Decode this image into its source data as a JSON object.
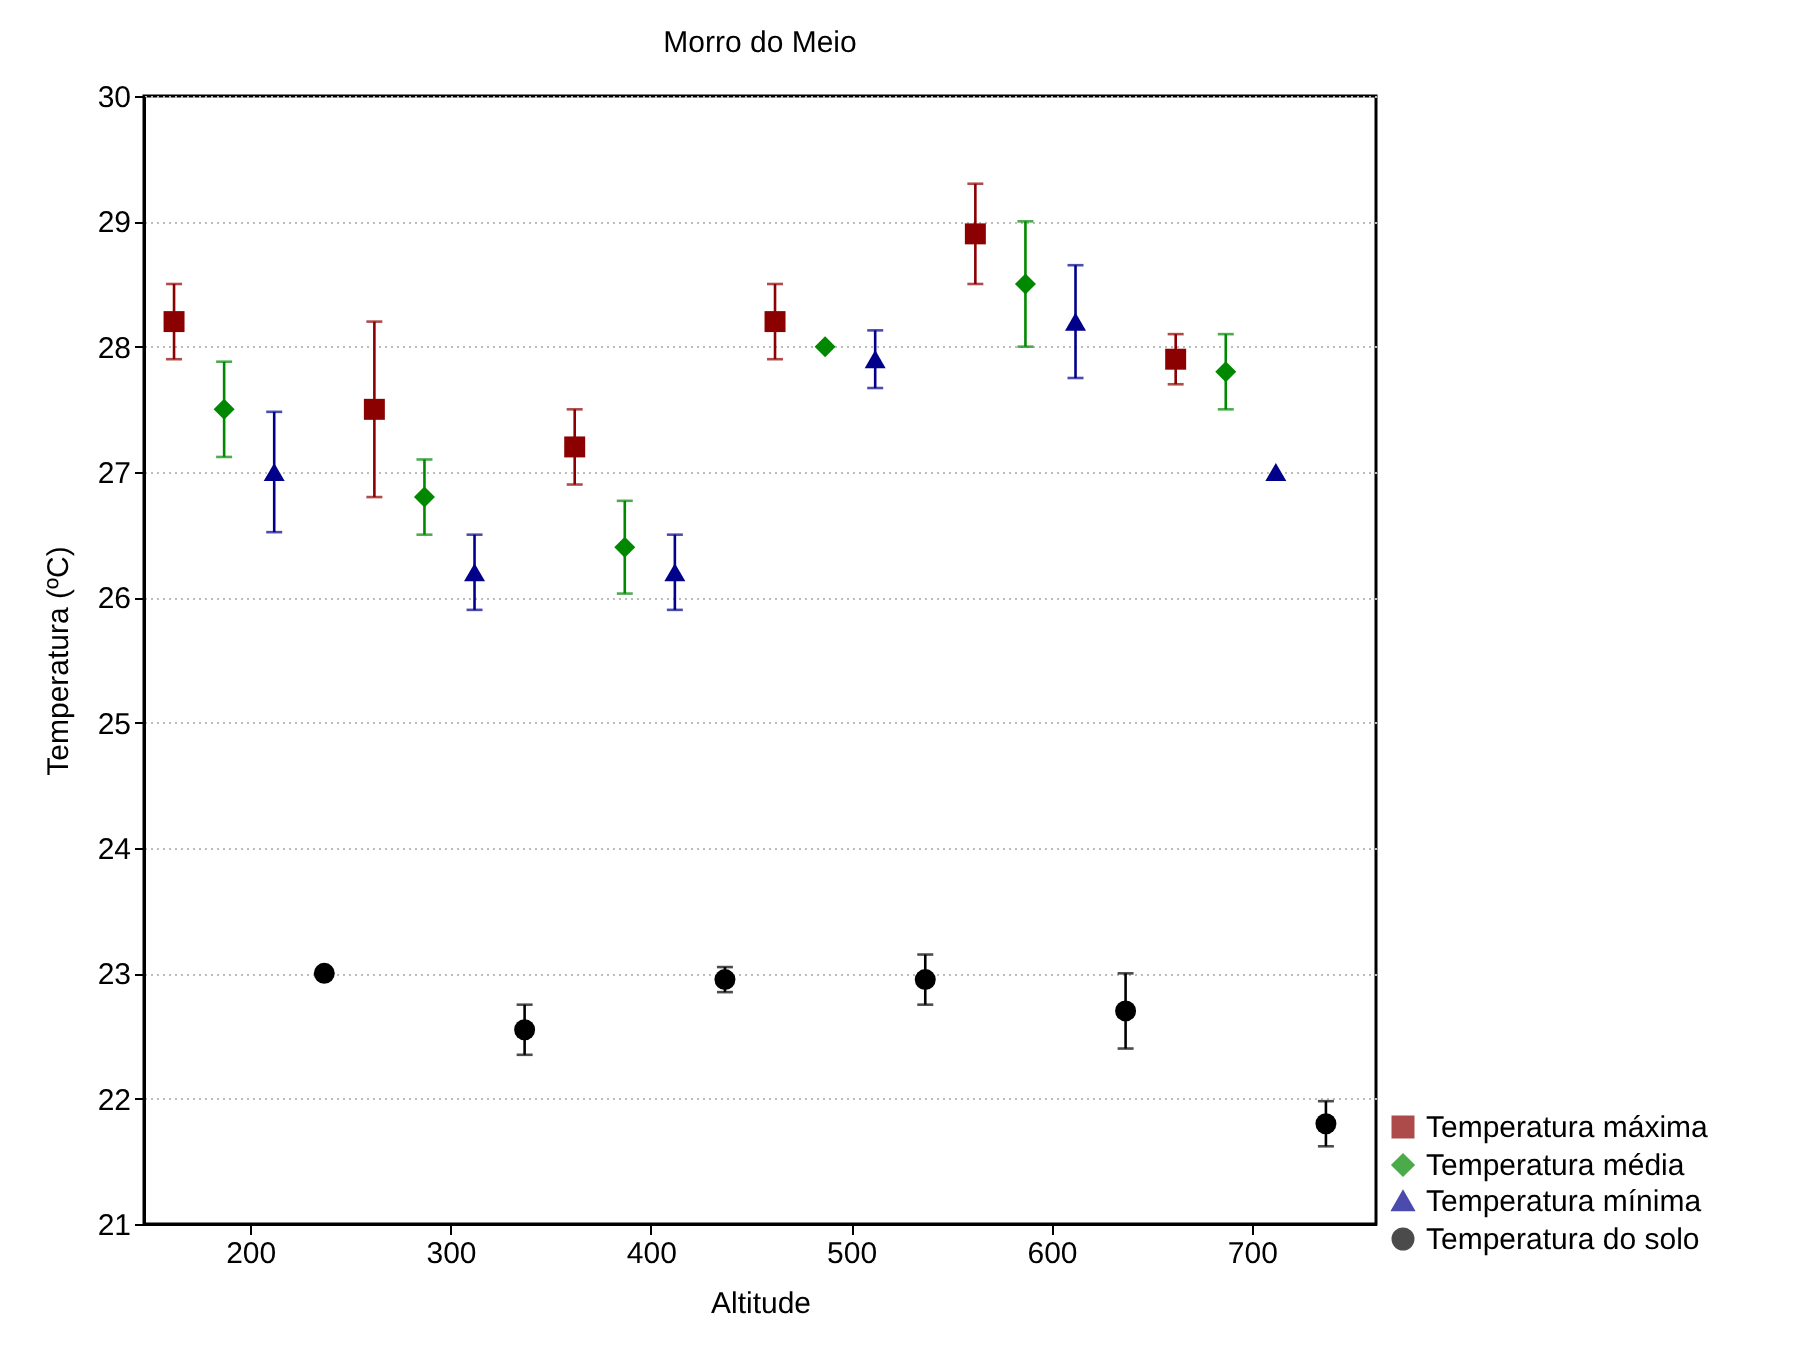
{
  "chart_data": {
    "type": "scatter",
    "title": "Morro do Meio",
    "xlabel": "Altitude",
    "ylabel": "Temperatura (ºC)",
    "xlim": [
      147,
      762
    ],
    "xticks": [
      200,
      300,
      400,
      500,
      600,
      700
    ],
    "ylim": [
      21,
      30
    ],
    "yticks": [
      21,
      22,
      23,
      24,
      25,
      26,
      27,
      28,
      29,
      30
    ],
    "grid": "y",
    "legend": "bottom right",
    "series": [
      {
        "name": "Temperatura máxima",
        "color": "#8b0000",
        "marker": "square",
        "x": [
          162,
          262,
          362,
          462,
          562,
          662
        ],
        "values": [
          28.2,
          27.5,
          27.2,
          28.2,
          28.9,
          27.9
        ],
        "errors": [
          [
            27.9,
            28.5
          ],
          [
            26.8,
            28.2
          ],
          [
            26.9,
            27.5
          ],
          [
            27.9,
            28.5
          ],
          [
            28.5,
            29.3
          ],
          [
            27.7,
            28.1
          ]
        ]
      },
      {
        "name": "Temperatura média",
        "color": "#008800",
        "marker": "diamond",
        "x": [
          187,
          287,
          387,
          487,
          587,
          687
        ],
        "values": [
          27.5,
          26.8,
          26.4,
          28.0,
          28.5,
          27.8
        ],
        "errors": [
          [
            27.12,
            27.88
          ],
          [
            26.5,
            27.1
          ],
          [
            26.03,
            26.77
          ],
          null,
          [
            28.0,
            29.0
          ],
          [
            27.5,
            28.1
          ]
        ]
      },
      {
        "name": "Temperatura mínima",
        "color": "#00008b",
        "marker": "triangle",
        "x": [
          212,
          312,
          412,
          512,
          612,
          712
        ],
        "values": [
          27.0,
          26.2,
          26.2,
          27.9,
          28.2,
          27.0
        ],
        "errors": [
          [
            26.52,
            27.48
          ],
          [
            25.9,
            26.5
          ],
          [
            25.9,
            26.5
          ],
          [
            27.67,
            28.13
          ],
          [
            27.75,
            28.65
          ],
          null
        ]
      },
      {
        "name": "Temperatura do solo",
        "color": "#000000",
        "marker": "circle",
        "x": [
          237,
          337,
          437,
          537,
          637,
          737
        ],
        "values": [
          23.0,
          22.55,
          22.95,
          22.95,
          22.7,
          21.8
        ],
        "errors": [
          null,
          [
            22.35,
            22.75
          ],
          [
            22.85,
            23.05
          ],
          [
            22.75,
            23.15
          ],
          [
            22.4,
            23.0
          ],
          [
            21.62,
            21.98
          ]
        ]
      }
    ]
  }
}
